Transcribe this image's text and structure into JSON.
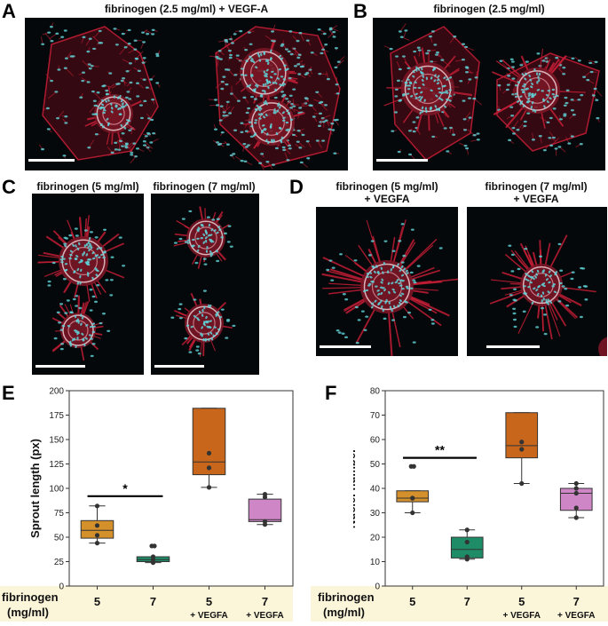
{
  "panels": {
    "A": {
      "letter": "A",
      "title": "fibrinogen (2.5 mg/ml) + VEGF-A"
    },
    "B": {
      "letter": "B",
      "title": "fibrinogen (2.5 mg/ml)"
    },
    "C": {
      "letter": "C",
      "title_left": "fibrinogen (5 mg/ml)",
      "title_right": "fibrinogen (7 mg/ml)"
    },
    "D": {
      "letter": "D",
      "title_left_line1": "fibrinogen (5 mg/ml)",
      "title_left_line2": "+ VEGFA",
      "title_right_line1": "fibrinogen (7 mg/ml)",
      "title_right_line2": "+ VEGFA"
    },
    "E": {
      "letter": "E"
    },
    "F": {
      "letter": "F"
    }
  },
  "bottom_axis": {
    "label_line1": "fibrinogen",
    "label_line2": "(mg/ml)",
    "colors": {
      "band": "#fbf6d9"
    }
  },
  "colors": {
    "box_5": "#d4902a",
    "box_7": "#1f8c68",
    "box_5v": "#c8661c",
    "box_7v": "#cf86c6",
    "cells_membrane": "#c21d35",
    "nuclei": "#5fd4d8"
  },
  "chart_data": [
    {
      "type": "box",
      "ylabel": "Sprout length (px)",
      "ylim": [
        0,
        200
      ],
      "yticks": [
        0,
        25,
        50,
        75,
        100,
        125,
        150,
        175,
        200
      ],
      "categories": [
        {
          "line1": "5",
          "line2": ""
        },
        {
          "line1": "7",
          "line2": ""
        },
        {
          "line1": "5",
          "line2": "+ VEGFA"
        },
        {
          "line1": "7",
          "line2": "+ VEGFA"
        }
      ],
      "boxes": [
        {
          "q1": 49,
          "median": 57,
          "q3": 67,
          "whisker_low": 44,
          "whisker_high": 82,
          "points": [
            44,
            52,
            62,
            82
          ],
          "outliers": [],
          "color": "#d4902a"
        },
        {
          "q1": 25,
          "median": 27,
          "q3": 30,
          "whisker_low": 24,
          "whisker_high": 30,
          "points": [
            24,
            27,
            30
          ],
          "outliers": [
            41,
            41
          ],
          "color": "#1f8c68"
        },
        {
          "q1": 114,
          "median": 127,
          "q3": 182,
          "whisker_low": 101,
          "whisker_high": 182,
          "points": [
            101,
            121,
            136
          ],
          "outliers": [],
          "color": "#c8661c"
        },
        {
          "q1": 66,
          "median": 68,
          "q3": 89,
          "whisker_low": 63,
          "whisker_high": 94,
          "points": [
            63,
            66,
            91,
            94
          ],
          "outliers": [],
          "color": "#cf86c6"
        }
      ],
      "significance": {
        "from": 0,
        "to": 1,
        "y": 92,
        "label": "*"
      }
    },
    {
      "type": "box",
      "ylabel": "Nuclei number",
      "ylim": [
        0,
        80
      ],
      "yticks": [
        0,
        10,
        20,
        30,
        40,
        50,
        60,
        70,
        80
      ],
      "categories": [
        {
          "line1": "5",
          "line2": ""
        },
        {
          "line1": "7",
          "line2": ""
        },
        {
          "line1": "5",
          "line2": "+ VEGFA"
        },
        {
          "line1": "7",
          "line2": "+ VEGFA"
        }
      ],
      "boxes": [
        {
          "q1": 34.5,
          "median": 36,
          "q3": 39,
          "whisker_low": 30,
          "whisker_high": 39,
          "points": [
            30,
            36,
            36
          ],
          "outliers": [
            49,
            49
          ],
          "color": "#d4902a"
        },
        {
          "q1": 11.5,
          "median": 15,
          "q3": 20,
          "whisker_low": 11,
          "whisker_high": 23,
          "points": [
            11,
            12,
            18,
            23
          ],
          "outliers": [],
          "color": "#1f8c68"
        },
        {
          "q1": 52.5,
          "median": 57.5,
          "q3": 71,
          "whisker_low": 42,
          "whisker_high": 71,
          "points": [
            42,
            56,
            59
          ],
          "outliers": [],
          "color": "#c8661c"
        },
        {
          "q1": 31,
          "median": 38,
          "q3": 40,
          "whisker_low": 28,
          "whisker_high": 42,
          "points": [
            28,
            32,
            38,
            40,
            42
          ],
          "outliers": [],
          "color": "#cf86c6"
        }
      ],
      "significance": {
        "from": 0,
        "to": 1,
        "y": 52.5,
        "label": "**"
      }
    }
  ]
}
